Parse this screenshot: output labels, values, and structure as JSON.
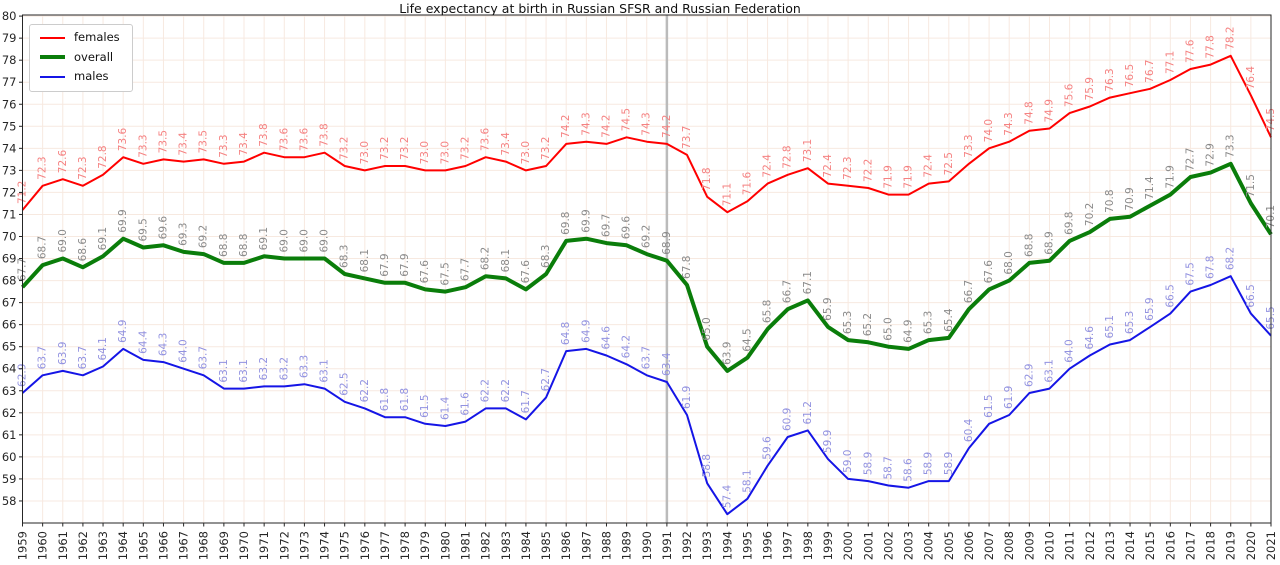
{
  "chart_data": {
    "type": "line",
    "title": "Life expectancy at birth in Russian SFSR and Russian Federation",
    "x": [
      1959,
      1960,
      1961,
      1962,
      1963,
      1964,
      1965,
      1966,
      1967,
      1968,
      1969,
      1970,
      1971,
      1972,
      1973,
      1974,
      1975,
      1976,
      1977,
      1978,
      1979,
      1980,
      1981,
      1982,
      1983,
      1984,
      1985,
      1986,
      1987,
      1988,
      1989,
      1990,
      1991,
      1992,
      1993,
      1994,
      1995,
      1996,
      1997,
      1998,
      1999,
      2000,
      2001,
      2002,
      2003,
      2004,
      2005,
      2006,
      2007,
      2008,
      2009,
      2010,
      2011,
      2012,
      2013,
      2014,
      2015,
      2016,
      2017,
      2018,
      2019,
      2020,
      2021
    ],
    "series": [
      {
        "name": "females",
        "color": "#ff0000",
        "label_color": "#f58282",
        "width": 2,
        "values": [
          71.2,
          72.3,
          72.6,
          72.3,
          72.8,
          73.6,
          73.3,
          73.5,
          73.4,
          73.5,
          73.3,
          73.4,
          73.8,
          73.6,
          73.6,
          73.8,
          73.2,
          73.0,
          73.2,
          73.2,
          73.0,
          73.0,
          73.2,
          73.6,
          73.4,
          73.0,
          73.2,
          74.2,
          74.3,
          74.2,
          74.5,
          74.3,
          74.2,
          73.7,
          71.8,
          71.1,
          71.6,
          72.4,
          72.8,
          73.1,
          72.4,
          72.3,
          72.2,
          71.9,
          71.9,
          72.4,
          72.5,
          73.3,
          74.0,
          74.3,
          74.8,
          74.9,
          75.6,
          75.9,
          76.3,
          76.5,
          76.7,
          77.1,
          77.6,
          77.8,
          78.2,
          76.4,
          74.5
        ]
      },
      {
        "name": "overall",
        "color": "#0a7d0a",
        "label_color": "#8a8a8a",
        "width": 4,
        "values": [
          67.7,
          68.7,
          69.0,
          68.6,
          69.1,
          69.9,
          69.5,
          69.6,
          69.3,
          69.2,
          68.8,
          68.8,
          69.1,
          69.0,
          69.0,
          69.0,
          68.3,
          68.1,
          67.9,
          67.9,
          67.6,
          67.5,
          67.7,
          68.2,
          68.1,
          67.6,
          68.3,
          69.8,
          69.9,
          69.7,
          69.6,
          69.2,
          68.9,
          67.8,
          65.0,
          63.9,
          64.5,
          65.8,
          66.7,
          67.1,
          65.9,
          65.3,
          65.2,
          65.0,
          64.9,
          65.3,
          65.4,
          66.7,
          67.6,
          68.0,
          68.8,
          68.9,
          69.8,
          70.2,
          70.8,
          70.9,
          71.4,
          71.9,
          72.7,
          72.9,
          73.3,
          71.5,
          70.1
        ]
      },
      {
        "name": "males",
        "color": "#1515e6",
        "label_color": "#9292e0",
        "width": 2,
        "values": [
          62.9,
          63.7,
          63.9,
          63.7,
          64.1,
          64.9,
          64.4,
          64.3,
          64.0,
          63.7,
          63.1,
          63.1,
          63.2,
          63.2,
          63.3,
          63.1,
          62.5,
          62.2,
          61.8,
          61.8,
          61.5,
          61.4,
          61.6,
          62.2,
          62.2,
          61.7,
          62.7,
          64.8,
          64.9,
          64.6,
          64.2,
          63.7,
          63.4,
          61.9,
          58.8,
          57.4,
          58.1,
          59.6,
          60.9,
          61.2,
          59.9,
          59.0,
          58.9,
          58.7,
          58.6,
          58.9,
          58.9,
          60.4,
          61.5,
          61.9,
          62.9,
          63.1,
          64.0,
          64.6,
          65.1,
          65.3,
          65.9,
          66.5,
          67.5,
          67.8,
          68.2,
          66.5,
          65.5
        ]
      }
    ],
    "point_labels": true,
    "y_ticks": {
      "min": 58,
      "max": 80,
      "step": 1
    },
    "ylim": [
      57.0,
      80.05
    ],
    "grid": true,
    "grid_color": "#f7e9e0",
    "legend_position": "upper left",
    "vline": {
      "x": 1991,
      "color": "#bbbbbb"
    },
    "axis_color": "#262626"
  }
}
